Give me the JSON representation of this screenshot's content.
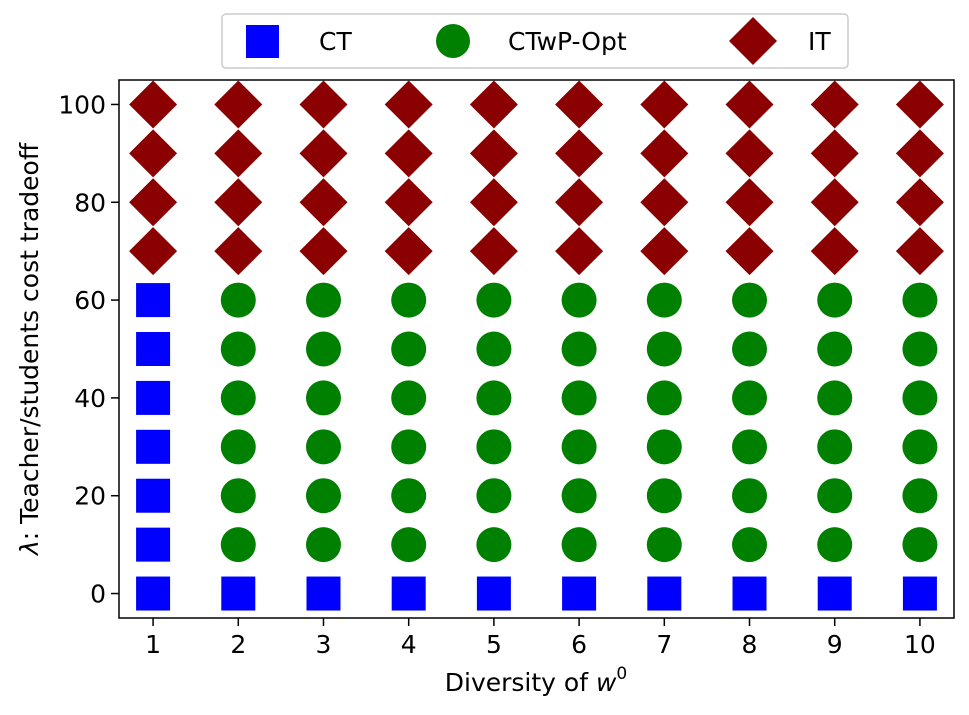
{
  "chart_data": {
    "type": "scatter",
    "title": "",
    "xlabel": "Diversity of ",
    "xlabel_math": "w",
    "xlabel_sup": "0",
    "ylabel": ": Teacher/students cost tradeoff",
    "ylabel_math": "λ",
    "x_ticks": [
      1,
      2,
      3,
      4,
      5,
      6,
      7,
      8,
      9,
      10
    ],
    "y_ticks": [
      0,
      20,
      40,
      60,
      80,
      100
    ],
    "xlim": [
      0.6,
      10.4
    ],
    "ylim": [
      -5,
      105
    ],
    "legend_position": "top-center-outside",
    "series": [
      {
        "name": "CT",
        "marker": "square",
        "color": "#0000ff",
        "points": [
          [
            1,
            0
          ],
          [
            1,
            10
          ],
          [
            1,
            20
          ],
          [
            1,
            30
          ],
          [
            1,
            40
          ],
          [
            1,
            50
          ],
          [
            1,
            60
          ],
          [
            2,
            0
          ],
          [
            3,
            0
          ],
          [
            4,
            0
          ],
          [
            5,
            0
          ],
          [
            6,
            0
          ],
          [
            7,
            0
          ],
          [
            8,
            0
          ],
          [
            9,
            0
          ],
          [
            10,
            0
          ]
        ]
      },
      {
        "name": "CTwP-Opt",
        "marker": "circle",
        "color": "#008000",
        "points": [
          [
            2,
            10
          ],
          [
            2,
            20
          ],
          [
            2,
            30
          ],
          [
            2,
            40
          ],
          [
            2,
            50
          ],
          [
            2,
            60
          ],
          [
            3,
            10
          ],
          [
            3,
            20
          ],
          [
            3,
            30
          ],
          [
            3,
            40
          ],
          [
            3,
            50
          ],
          [
            3,
            60
          ],
          [
            4,
            10
          ],
          [
            4,
            20
          ],
          [
            4,
            30
          ],
          [
            4,
            40
          ],
          [
            4,
            50
          ],
          [
            4,
            60
          ],
          [
            5,
            10
          ],
          [
            5,
            20
          ],
          [
            5,
            30
          ],
          [
            5,
            40
          ],
          [
            5,
            50
          ],
          [
            5,
            60
          ],
          [
            6,
            10
          ],
          [
            6,
            20
          ],
          [
            6,
            30
          ],
          [
            6,
            40
          ],
          [
            6,
            50
          ],
          [
            6,
            60
          ],
          [
            7,
            10
          ],
          [
            7,
            20
          ],
          [
            7,
            30
          ],
          [
            7,
            40
          ],
          [
            7,
            50
          ],
          [
            7,
            60
          ],
          [
            8,
            10
          ],
          [
            8,
            20
          ],
          [
            8,
            30
          ],
          [
            8,
            40
          ],
          [
            8,
            50
          ],
          [
            8,
            60
          ],
          [
            9,
            10
          ],
          [
            9,
            20
          ],
          [
            9,
            30
          ],
          [
            9,
            40
          ],
          [
            9,
            50
          ],
          [
            9,
            60
          ],
          [
            10,
            10
          ],
          [
            10,
            20
          ],
          [
            10,
            30
          ],
          [
            10,
            40
          ],
          [
            10,
            50
          ],
          [
            10,
            60
          ]
        ]
      },
      {
        "name": "IT",
        "marker": "diamond",
        "color": "#8b0000",
        "points": [
          [
            1,
            70
          ],
          [
            1,
            80
          ],
          [
            1,
            90
          ],
          [
            1,
            100
          ],
          [
            2,
            70
          ],
          [
            2,
            80
          ],
          [
            2,
            90
          ],
          [
            2,
            100
          ],
          [
            3,
            70
          ],
          [
            3,
            80
          ],
          [
            3,
            90
          ],
          [
            3,
            100
          ],
          [
            4,
            70
          ],
          [
            4,
            80
          ],
          [
            4,
            90
          ],
          [
            4,
            100
          ],
          [
            5,
            70
          ],
          [
            5,
            80
          ],
          [
            5,
            90
          ],
          [
            5,
            100
          ],
          [
            6,
            70
          ],
          [
            6,
            80
          ],
          [
            6,
            90
          ],
          [
            6,
            100
          ],
          [
            7,
            70
          ],
          [
            7,
            80
          ],
          [
            7,
            90
          ],
          [
            7,
            100
          ],
          [
            8,
            70
          ],
          [
            8,
            80
          ],
          [
            8,
            90
          ],
          [
            8,
            100
          ],
          [
            9,
            70
          ],
          [
            9,
            80
          ],
          [
            9,
            90
          ],
          [
            9,
            100
          ],
          [
            10,
            70
          ],
          [
            10,
            80
          ],
          [
            10,
            90
          ],
          [
            10,
            100
          ]
        ]
      }
    ]
  }
}
